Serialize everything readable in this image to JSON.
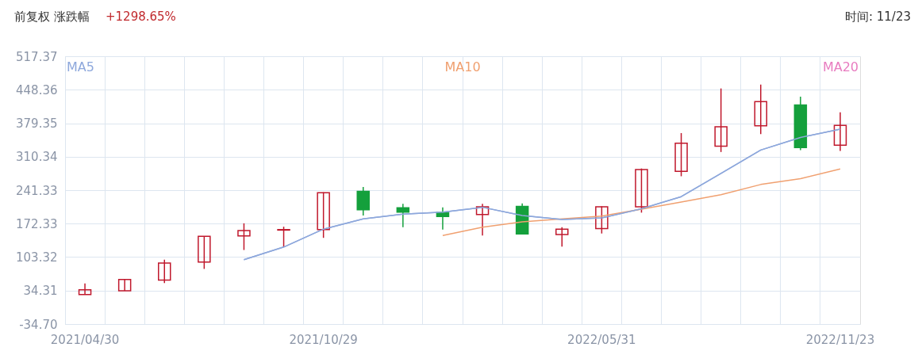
{
  "chart_data": {
    "type": "candlestick",
    "title": "前复权 涨跌幅",
    "annotations": [
      "+1298.65%",
      "时间: 11/23"
    ],
    "categories": [
      "2021/04/30",
      null,
      null,
      null,
      null,
      null,
      "2021/10/29",
      null,
      null,
      null,
      null,
      null,
      null,
      "2022/05/31",
      null,
      null,
      null,
      null,
      null,
      "2022/11/23"
    ],
    "ohlc": [
      [
        26,
        49,
        26,
        36
      ],
      [
        34,
        58,
        34,
        57
      ],
      [
        56,
        98,
        50,
        91
      ],
      [
        93,
        146,
        79,
        146
      ],
      [
        147,
        173,
        118,
        158
      ],
      [
        159,
        166,
        124,
        160
      ],
      [
        160,
        237,
        143,
        236
      ],
      [
        239,
        248,
        189,
        201
      ],
      [
        205,
        213,
        165,
        196
      ],
      [
        195,
        206,
        160,
        187
      ],
      [
        191,
        213,
        148,
        207
      ],
      [
        208,
        214,
        150,
        151
      ],
      [
        150,
        165,
        125,
        161
      ],
      [
        162,
        208,
        152,
        207
      ],
      [
        207,
        286,
        195,
        284
      ],
      [
        280,
        359,
        270,
        338
      ],
      [
        332,
        451,
        320,
        372
      ],
      [
        374,
        459,
        357,
        424
      ],
      [
        417,
        434,
        324,
        329
      ],
      [
        334,
        402,
        322,
        375
      ]
    ],
    "colors": [
      "#c0182c",
      "#c0182c",
      "#c0182c",
      "#c0182c",
      "#c0182c",
      "#c0182c",
      "#c0182c",
      "#14a03c",
      "#14a03c",
      "#14a03c",
      "#c0182c",
      "#14a03c",
      "#c0182c",
      "#c0182c",
      "#c0182c",
      "#c0182c",
      "#c0182c",
      "#c0182c",
      "#14a03c",
      "#c0182c"
    ],
    "series": [
      {
        "name": "MA5",
        "type": "line",
        "color": "#8ea8dc",
        "values": [
          null,
          null,
          null,
          null,
          98,
          124,
          161,
          182,
          192,
          196,
          206,
          189,
          181,
          184,
          203,
          228,
          276,
          324,
          350,
          367
        ]
      },
      {
        "name": "MA10",
        "type": "line",
        "color": "#f0a070",
        "values": [
          null,
          null,
          null,
          null,
          null,
          null,
          null,
          null,
          null,
          148,
          165,
          176,
          182,
          188,
          202,
          217,
          232,
          253,
          265,
          285
        ]
      },
      {
        "name": "MA20",
        "type": "line",
        "color": "#e87cc0",
        "values": [
          null,
          null,
          null,
          null,
          null,
          null,
          null,
          null,
          null,
          null,
          null,
          null,
          null,
          null,
          null,
          null,
          null,
          null,
          null,
          null
        ]
      }
    ],
    "ylim": [
      -34.7,
      517.37
    ],
    "yticks": [
      {
        "value": -34.7,
        "label": "-34.70"
      },
      34.31,
      103.32,
      172.33,
      241.33,
      310.34,
      379.35,
      448.36,
      517.37
    ],
    "grid": true,
    "legend": "top"
  }
}
